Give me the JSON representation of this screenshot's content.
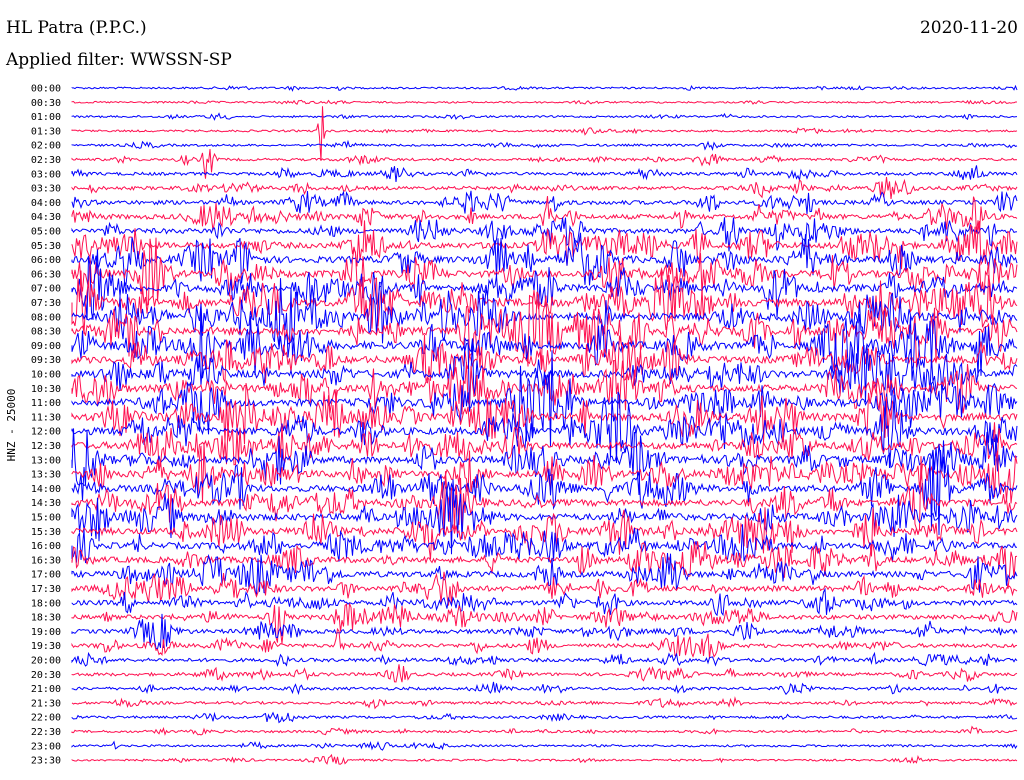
{
  "header": {
    "station": "HL Patra (P.P.C.)",
    "date": "2020-11-20",
    "filter_line": "Applied filter: WWSSN-SP"
  },
  "chart_data": {
    "type": "line",
    "title": "HL Patra (P.P.C.)",
    "ylabel": "HNZ - 25000",
    "xlabel": "",
    "filter": "WWSSN-SP",
    "date": "2020-11-20",
    "row_interval_minutes": 30,
    "rows": [
      "00:00",
      "00:30",
      "01:00",
      "01:30",
      "02:00",
      "02:30",
      "03:00",
      "03:30",
      "04:00",
      "04:30",
      "05:00",
      "05:30",
      "06:00",
      "06:30",
      "07:00",
      "07:30",
      "08:00",
      "08:30",
      "09:00",
      "09:30",
      "10:00",
      "10:30",
      "11:00",
      "11:30",
      "12:00",
      "12:30",
      "13:00",
      "13:30",
      "14:00",
      "14:30",
      "15:00",
      "15:30",
      "16:00",
      "16:30",
      "17:00",
      "17:30",
      "18:00",
      "18:30",
      "19:00",
      "19:30",
      "20:00",
      "20:30",
      "21:00",
      "21:30",
      "22:00",
      "22:30",
      "23:00",
      "23:30"
    ],
    "colors": [
      "#0000ff",
      "#ff1050"
    ],
    "relative_noise_level": [
      0.1,
      0.08,
      0.12,
      0.12,
      0.15,
      0.2,
      0.28,
      0.35,
      0.45,
      0.55,
      0.6,
      0.7,
      0.8,
      0.85,
      0.9,
      0.95,
      0.95,
      0.95,
      0.95,
      0.9,
      0.9,
      0.9,
      0.9,
      0.9,
      0.9,
      0.85,
      0.85,
      0.85,
      0.8,
      0.8,
      0.8,
      0.8,
      0.75,
      0.7,
      0.7,
      0.65,
      0.55,
      0.5,
      0.45,
      0.4,
      0.35,
      0.3,
      0.25,
      0.22,
      0.2,
      0.18,
      0.15,
      0.12
    ],
    "grid": false,
    "legend": "none"
  }
}
